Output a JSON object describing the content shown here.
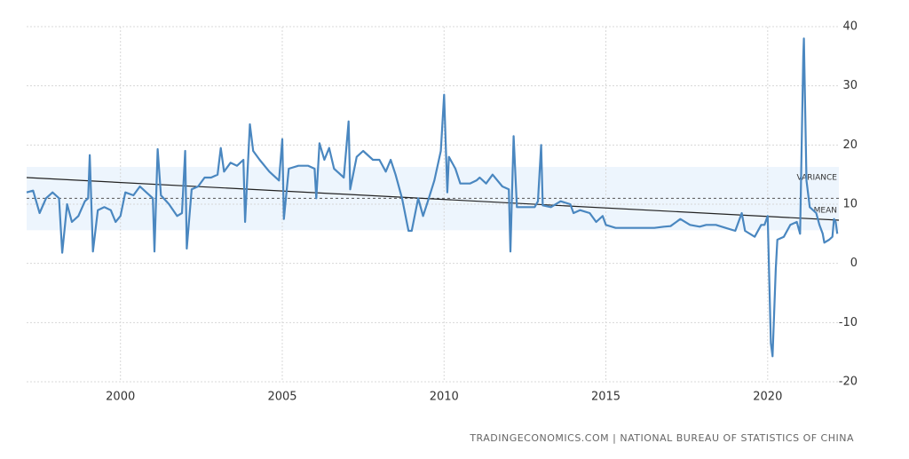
{
  "chart_data": {
    "type": "line",
    "x": [
      1997.1,
      1997.3,
      1997.5,
      1997.7,
      1997.9,
      1998.1,
      1998.2,
      1998.35,
      1998.5,
      1998.7,
      1998.9,
      1999.0,
      1999.05,
      1999.15,
      1999.3,
      1999.5,
      1999.7,
      1999.85,
      2000.0,
      2000.15,
      2000.4,
      2000.6,
      2000.8,
      2001.0,
      2001.05,
      2001.15,
      2001.25,
      2001.5,
      2001.75,
      2001.9,
      2002.0,
      2002.05,
      2002.2,
      2002.4,
      2002.6,
      2002.8,
      2003.0,
      2003.1,
      2003.2,
      2003.4,
      2003.6,
      2003.8,
      2003.85,
      2004.0,
      2004.1,
      2004.3,
      2004.6,
      2004.9,
      2005.0,
      2005.05,
      2005.2,
      2005.5,
      2005.8,
      2006.0,
      2006.05,
      2006.15,
      2006.3,
      2006.45,
      2006.6,
      2006.9,
      2007.05,
      2007.1,
      2007.3,
      2007.5,
      2007.8,
      2008.0,
      2008.2,
      2008.35,
      2008.5,
      2008.7,
      2008.9,
      2009.0,
      2009.2,
      2009.35,
      2009.5,
      2009.7,
      2009.9,
      2010.0,
      2010.1,
      2010.15,
      2010.35,
      2010.5,
      2010.8,
      2011.0,
      2011.1,
      2011.3,
      2011.5,
      2011.8,
      2012.0,
      2012.05,
      2012.15,
      2012.25,
      2012.5,
      2012.8,
      2012.9,
      2013.0,
      2013.05,
      2013.3,
      2013.6,
      2013.9,
      2014.0,
      2014.2,
      2014.5,
      2014.7,
      2014.9,
      2015.0,
      2015.3,
      2015.6,
      2015.9,
      2016.2,
      2016.5,
      2016.8,
      2017.0,
      2017.3,
      2017.6,
      2017.9,
      2018.1,
      2018.4,
      2018.7,
      2019.0,
      2019.2,
      2019.3,
      2019.6,
      2019.8,
      2019.9,
      2020.0,
      2020.1,
      2020.15,
      2020.25,
      2020.3,
      2020.5,
      2020.7,
      2020.9,
      2021.0,
      2021.1,
      2021.12,
      2021.2,
      2021.3,
      2021.5,
      2021.6,
      2021.7,
      2021.75,
      2021.9,
      2022.0,
      2022.05,
      2022.1,
      2022.15
    ],
    "values": [
      12,
      12.3,
      8.5,
      11,
      12,
      11,
      1.8,
      10,
      7,
      8,
      10.5,
      11,
      18.3,
      2,
      9,
      9.5,
      9,
      7,
      8,
      12,
      11.5,
      13,
      12,
      11,
      2,
      19.3,
      11.5,
      10,
      8,
      8.5,
      19,
      2.5,
      12.5,
      13,
      14.5,
      14.5,
      15,
      19.5,
      15.5,
      17,
      16.5,
      17.5,
      7,
      23.5,
      19,
      17.5,
      15.5,
      14,
      21,
      7.5,
      16,
      16.5,
      16.5,
      16,
      11,
      20.3,
      17.5,
      19.5,
      16,
      14.5,
      24,
      12.5,
      18,
      19,
      17.5,
      17.5,
      15.5,
      17.5,
      15,
      11,
      5.5,
      5.5,
      11,
      8,
      10.5,
      14,
      19,
      28.5,
      12,
      18,
      16,
      13.5,
      13.5,
      14,
      14.5,
      13.5,
      15,
      13,
      12.5,
      2,
      21.5,
      9.5,
      9.5,
      9.5,
      10.5,
      20,
      9.8,
      9.5,
      10.5,
      10,
      8.5,
      9,
      8.5,
      7,
      8,
      6.5,
      6,
      6,
      6,
      6,
      6,
      6.2,
      6.3,
      7.5,
      6.5,
      6.2,
      6.5,
      6.5,
      6,
      5.5,
      8.5,
      5.5,
      4.5,
      6.5,
      6.5,
      8,
      -13.5,
      -15.7,
      -1,
      4,
      4.5,
      6.5,
      7,
      5,
      35,
      38,
      14,
      9.5,
      8.5,
      6.5,
      5,
      3.5,
      4,
      4.5,
      7.5,
      7,
      5
    ],
    "color": "#4a87c0",
    "trend": {
      "x": [
        1997.1,
        2022.2
      ],
      "values": [
        14.5,
        7.3
      ]
    },
    "mean": 11,
    "variance_band": [
      5.6,
      16.3
    ],
    "annotations": [
      "VARIANCE",
      "MEAN"
    ],
    "xlim": [
      1997.1,
      2022.2
    ],
    "xticks": [
      2000,
      2005,
      2010,
      2015,
      2020
    ],
    "ylim": [
      -20,
      40
    ],
    "yticks": [
      -20,
      -10,
      0,
      10,
      20,
      30,
      40
    ],
    "grid": true,
    "source": "TRADINGECONOMICS.COM | NATIONAL BUREAU OF STATISTICS OF CHINA"
  }
}
